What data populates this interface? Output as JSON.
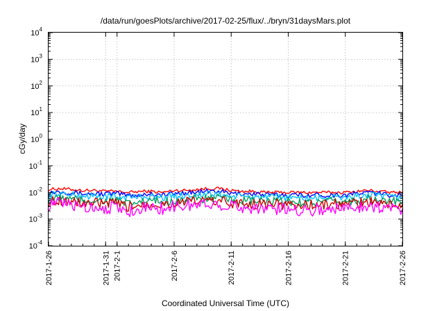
{
  "chart_data": {
    "type": "line",
    "title": "/data/run/goesPlots/archive/2017-02-25/flux/../bryn/31daysMars.plot",
    "xlabel": "Coordinated Universal Time (UTC)",
    "ylabel": "cGy/day",
    "y_scale": "log",
    "ylim": [
      0.0001,
      10000
    ],
    "y_ticks": [
      {
        "base": "10",
        "exp": "4"
      },
      {
        "base": "10",
        "exp": "3"
      },
      {
        "base": "10",
        "exp": "2"
      },
      {
        "base": "10",
        "exp": "1"
      },
      {
        "base": "10",
        "exp": "0"
      },
      {
        "base": "10",
        "exp": "-1"
      },
      {
        "base": "10",
        "exp": "-2"
      },
      {
        "base": "10",
        "exp": "-3"
      },
      {
        "base": "10",
        "exp": "-4"
      }
    ],
    "xlim": [
      "2017-01-26",
      "2017-02-26"
    ],
    "x_ticks": [
      "2017-1-26",
      "2017-1-31",
      "2017-2-1",
      "2017-2-6",
      "2017-2-11",
      "2017-2-16",
      "2017-2-21",
      "2017-2-26"
    ],
    "grid": true,
    "legend": "none",
    "x": [
      "2017-01-26",
      "2017-01-27",
      "2017-01-28",
      "2017-01-29",
      "2017-01-30",
      "2017-01-31",
      "2017-02-01",
      "2017-02-02",
      "2017-02-03",
      "2017-02-04",
      "2017-02-05",
      "2017-02-06",
      "2017-02-07",
      "2017-02-08",
      "2017-02-09",
      "2017-02-10",
      "2017-02-11",
      "2017-02-12",
      "2017-02-13",
      "2017-02-14",
      "2017-02-15",
      "2017-02-16",
      "2017-02-17",
      "2017-02-18",
      "2017-02-19",
      "2017-02-20",
      "2017-02-21",
      "2017-02-22",
      "2017-02-23",
      "2017-02-24",
      "2017-02-25",
      "2017-02-26"
    ],
    "series": [
      {
        "color": "#ff0000",
        "values": [
          0.013,
          0.014,
          0.013,
          0.012,
          0.012,
          0.011,
          0.011,
          0.01,
          0.011,
          0.011,
          0.01,
          0.012,
          0.012,
          0.013,
          0.014,
          0.014,
          0.012,
          0.011,
          0.011,
          0.01,
          0.01,
          0.01,
          0.01,
          0.01,
          0.01,
          0.01,
          0.01,
          0.011,
          0.012,
          0.011,
          0.01,
          0.01
        ]
      },
      {
        "color": "#0000ff",
        "values": [
          0.01,
          0.011,
          0.01,
          0.009,
          0.009,
          0.009,
          0.009,
          0.008,
          0.008,
          0.009,
          0.008,
          0.009,
          0.01,
          0.01,
          0.011,
          0.011,
          0.009,
          0.009,
          0.009,
          0.008,
          0.008,
          0.008,
          0.008,
          0.008,
          0.008,
          0.008,
          0.008,
          0.009,
          0.01,
          0.009,
          0.008,
          0.008
        ]
      },
      {
        "color": "#00bfff",
        "values": [
          0.008,
          0.009,
          0.008,
          0.0075,
          0.0072,
          0.007,
          0.007,
          0.0065,
          0.0068,
          0.007,
          0.0065,
          0.0072,
          0.008,
          0.008,
          0.0085,
          0.0085,
          0.0072,
          0.007,
          0.007,
          0.0065,
          0.0065,
          0.0065,
          0.0062,
          0.0062,
          0.0062,
          0.0065,
          0.0065,
          0.0072,
          0.008,
          0.0072,
          0.0065,
          0.0065
        ]
      },
      {
        "color": "#00a060",
        "values": [
          0.0055,
          0.006,
          0.0055,
          0.005,
          0.005,
          0.0048,
          0.0048,
          0.0035,
          0.0045,
          0.0048,
          0.0045,
          0.005,
          0.0055,
          0.0055,
          0.006,
          0.006,
          0.005,
          0.0048,
          0.0048,
          0.0045,
          0.0045,
          0.0045,
          0.0042,
          0.0042,
          0.0042,
          0.0045,
          0.0045,
          0.005,
          0.0055,
          0.005,
          0.0045,
          0.0045
        ]
      },
      {
        "color": "#cc0000",
        "values": [
          0.0045,
          0.005,
          0.0045,
          0.004,
          0.004,
          0.0038,
          0.0038,
          0.0028,
          0.0036,
          0.0038,
          0.0036,
          0.004,
          0.0045,
          0.0045,
          0.005,
          0.005,
          0.004,
          0.0038,
          0.0038,
          0.0036,
          0.0036,
          0.0036,
          0.0034,
          0.0034,
          0.0034,
          0.0036,
          0.0036,
          0.004,
          0.0045,
          0.004,
          0.0036,
          0.0036
        ]
      },
      {
        "color": "#ff00ff",
        "values": [
          0.0035,
          0.004,
          0.0033,
          0.003,
          0.0028,
          0.0027,
          0.0027,
          0.0019,
          0.0026,
          0.0027,
          0.0025,
          0.003,
          0.0033,
          0.0034,
          0.0038,
          0.0037,
          0.003,
          0.0028,
          0.0027,
          0.0025,
          0.0024,
          0.0024,
          0.0023,
          0.0022,
          0.0023,
          0.0025,
          0.0025,
          0.0029,
          0.0033,
          0.0028,
          0.0025,
          0.0024
        ]
      }
    ]
  }
}
